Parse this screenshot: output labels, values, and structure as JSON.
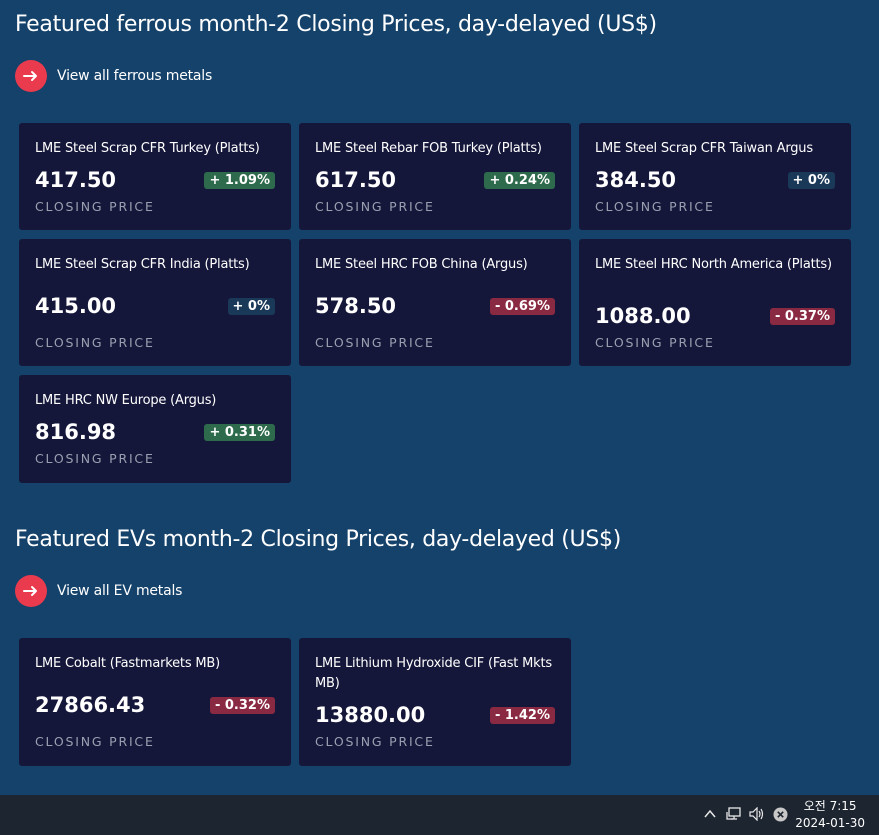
{
  "ferrous": {
    "title": "Featured ferrous month-2 Closing Prices, day-delayed (US$)",
    "link_label": "View all ferrous metals",
    "cards": [
      {
        "name": "LME Steel Scrap CFR Turkey (Platts)",
        "price": "417.50",
        "change": "+ 1.09%",
        "direction": "up",
        "sub": "CLOSING PRICE"
      },
      {
        "name": "LME Steel Rebar FOB Turkey (Platts)",
        "price": "617.50",
        "change": "+ 0.24%",
        "direction": "up",
        "sub": "CLOSING PRICE"
      },
      {
        "name": "LME Steel Scrap CFR Taiwan Argus",
        "price": "384.50",
        "change": "+ 0%",
        "direction": "flat",
        "sub": "CLOSING PRICE"
      },
      {
        "name": "LME Steel Scrap CFR India (Platts)",
        "price": "415.00",
        "change": "+ 0%",
        "direction": "flat",
        "sub": "CLOSING PRICE"
      },
      {
        "name": "LME Steel HRC FOB China (Argus)",
        "price": "578.50",
        "change": "- 0.69%",
        "direction": "down",
        "sub": "CLOSING PRICE"
      },
      {
        "name": "LME Steel HRC North America (Platts)",
        "price": "1088.00",
        "change": "- 0.37%",
        "direction": "down",
        "sub": "CLOSING PRICE"
      },
      {
        "name": "LME HRC NW Europe (Argus)",
        "price": "816.98",
        "change": "+ 0.31%",
        "direction": "up",
        "sub": "CLOSING PRICE"
      }
    ]
  },
  "ev": {
    "title": "Featured EVs month-2 Closing Prices, day-delayed (US$)",
    "link_label": "View all EV metals",
    "cards": [
      {
        "name": "LME Cobalt (Fastmarkets MB)",
        "price": "27866.43",
        "change": "- 0.32%",
        "direction": "down",
        "sub": "CLOSING PRICE"
      },
      {
        "name": "LME Lithium Hydroxide CIF (Fast Mkts MB)",
        "price": "13880.00",
        "change": "- 1.42%",
        "direction": "down",
        "sub": "CLOSING PRICE"
      }
    ]
  },
  "taskbar": {
    "time": "오전 7:15",
    "date": "2024-01-30",
    "icons": [
      "chevron-up-icon",
      "network-icon",
      "speaker-icon",
      "close-circle-icon"
    ]
  },
  "colors": {
    "page_bg": "#15426a",
    "card_bg": "#15173a",
    "accent": "#ea3a4e",
    "up": "#2e6b4c",
    "down": "#8a2942",
    "flat": "#1a3858"
  }
}
